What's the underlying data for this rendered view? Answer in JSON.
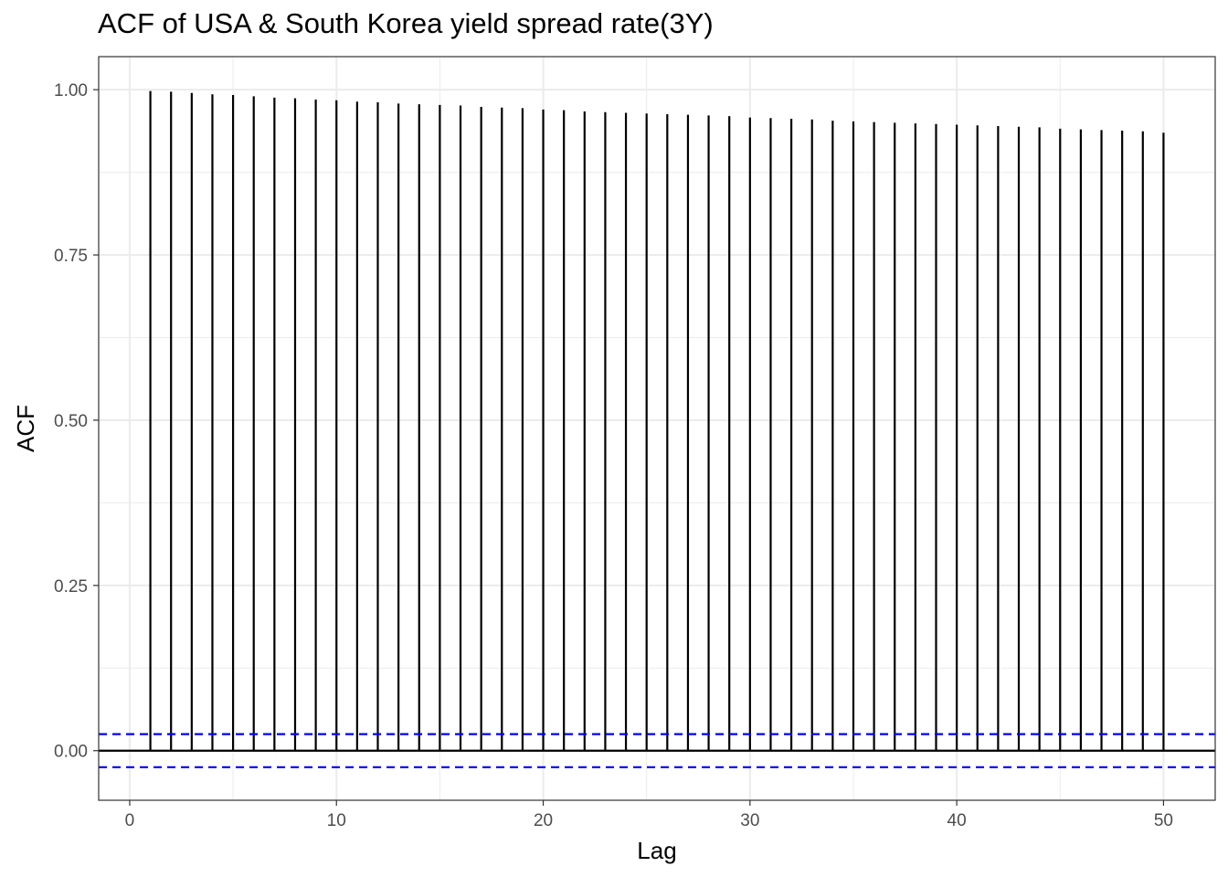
{
  "chart_data": {
    "type": "bar",
    "title": "ACF of USA & South Korea yield spread rate(3Y)",
    "xlabel": "Lag",
    "ylabel": "ACF",
    "xlim": [
      -1.5,
      52.5
    ],
    "ylim": [
      -0.075,
      1.05
    ],
    "x_ticks": [
      0,
      10,
      20,
      30,
      40,
      50
    ],
    "y_ticks": [
      0.0,
      0.25,
      0.5,
      0.75,
      1.0
    ],
    "x_tick_labels": [
      "0",
      "10",
      "20",
      "30",
      "40",
      "50"
    ],
    "y_tick_labels": [
      "0.00",
      "0.25",
      "0.50",
      "0.75",
      "1.00"
    ],
    "lags": [
      1,
      2,
      3,
      4,
      5,
      6,
      7,
      8,
      9,
      10,
      11,
      12,
      13,
      14,
      15,
      16,
      17,
      18,
      19,
      20,
      21,
      22,
      23,
      24,
      25,
      26,
      27,
      28,
      29,
      30,
      31,
      32,
      33,
      34,
      35,
      36,
      37,
      38,
      39,
      40,
      41,
      42,
      43,
      44,
      45,
      46,
      47,
      48,
      49,
      50
    ],
    "values": [
      0.998,
      0.997,
      0.995,
      0.993,
      0.992,
      0.99,
      0.988,
      0.987,
      0.985,
      0.984,
      0.982,
      0.981,
      0.979,
      0.978,
      0.977,
      0.976,
      0.974,
      0.973,
      0.972,
      0.97,
      0.969,
      0.967,
      0.966,
      0.965,
      0.964,
      0.963,
      0.962,
      0.961,
      0.96,
      0.958,
      0.957,
      0.956,
      0.955,
      0.953,
      0.952,
      0.951,
      0.95,
      0.949,
      0.948,
      0.947,
      0.946,
      0.945,
      0.944,
      0.943,
      0.941,
      0.94,
      0.939,
      0.938,
      0.937,
      0.935
    ],
    "confidence_bounds": [
      0.025,
      -0.025
    ],
    "grid": true,
    "colors": {
      "bars": "#000000",
      "confidence": "#0000ff",
      "grid": "#ebebeb",
      "panel_border": "#333333"
    }
  }
}
